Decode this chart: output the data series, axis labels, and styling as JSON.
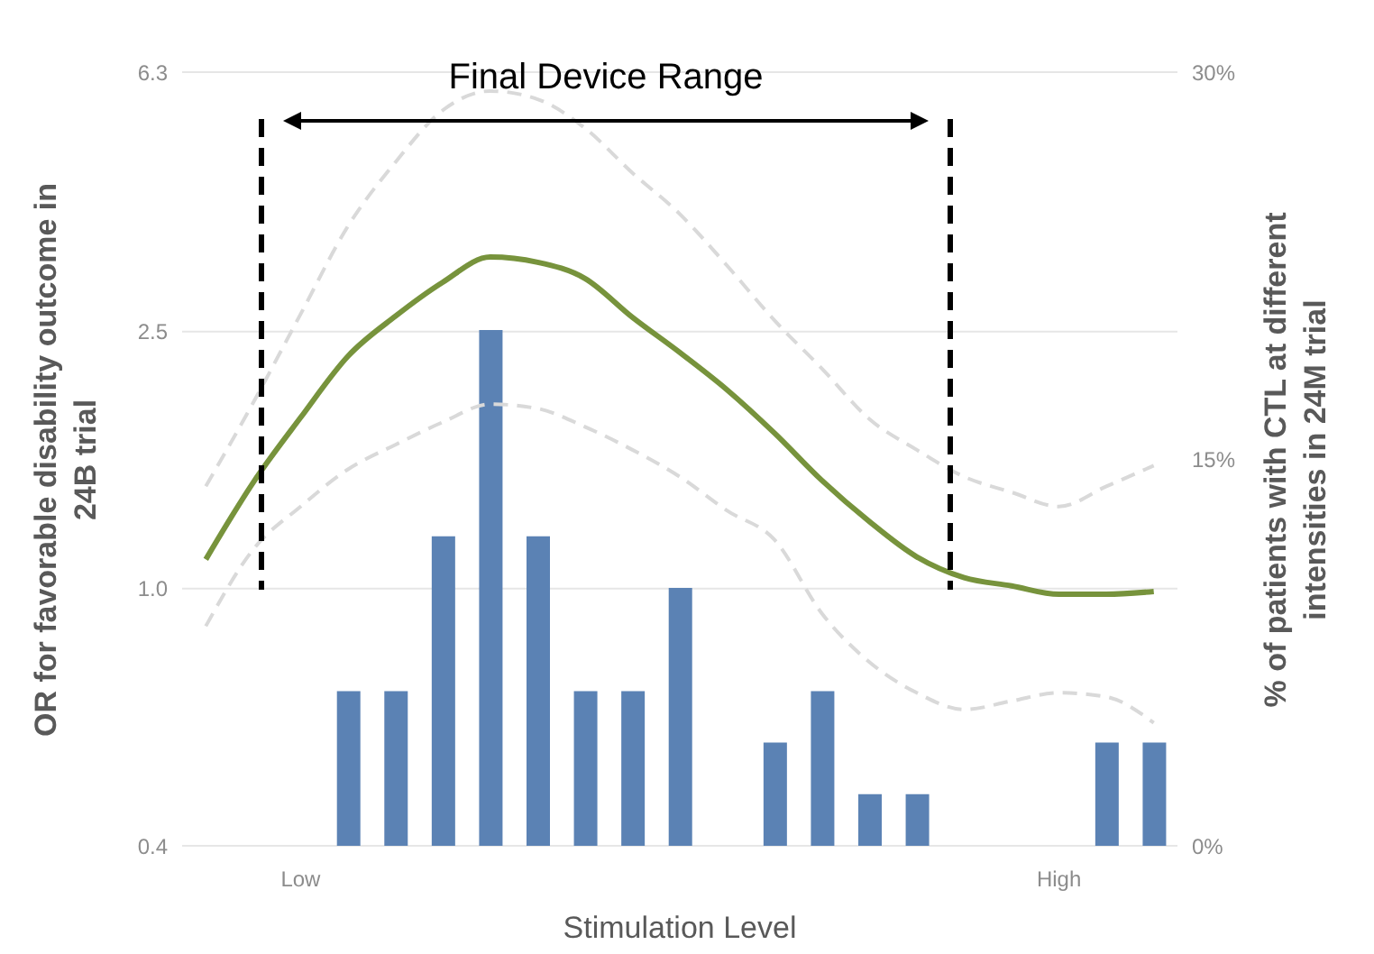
{
  "chart_data": {
    "type": "bar",
    "xlabel": "Stimulation Level",
    "ylabel": "OR for favorable disability outcome in 24B trial",
    "y2label": "% of patients with CTL at different intensities in 24M trial",
    "annotations": [
      "Final Device Range"
    ],
    "categories": [
      null,
      null,
      "Low",
      null,
      null,
      null,
      null,
      null,
      null,
      null,
      null,
      null,
      null,
      null,
      null,
      null,
      null,
      null,
      "High",
      null,
      null
    ],
    "log": "y",
    "ylim": [
      0.4,
      6.3
    ],
    "yticks": [
      0.4,
      {
        "value": 1,
        "label": "1.0"
      },
      2.5,
      6.3
    ],
    "y2lim": [
      0,
      30
    ],
    "y2ticks": [
      {
        "value": 0,
        "label": "0%"
      },
      {
        "value": 15,
        "label": "15%"
      },
      {
        "value": 30,
        "label": "30%"
      }
    ],
    "grid": "y",
    "series": [
      {
        "type": "line",
        "color": "#d9d9d9",
        "line_style": "dashed",
        "values": [
          1.44,
          1.94,
          2.66,
          3.64,
          4.57,
          5.5,
          5.89,
          5.72,
          5.16,
          4.4,
          3.8,
          3.16,
          2.6,
          2.19,
          1.83,
          1.64,
          1.49,
          1.41,
          1.34,
          1.44,
          1.55
        ]
      },
      {
        "type": "line",
        "color": "#d9d9d9",
        "line_style": "dashed",
        "values": [
          0.875,
          1.15,
          1.34,
          1.53,
          1.67,
          1.81,
          1.93,
          1.9,
          1.78,
          1.64,
          1.49,
          1.32,
          1.19,
          0.915,
          0.77,
          0.69,
          0.65,
          0.67,
          0.69,
          0.68,
          0.62
        ]
      },
      {
        "axis": "y2",
        "color": "#5b82b4",
        "values": [
          null,
          null,
          null,
          6,
          6,
          12,
          20,
          12,
          6,
          6,
          10,
          null,
          4,
          6,
          2,
          2,
          null,
          null,
          null,
          4,
          4
        ]
      },
      {
        "type": "line",
        "color": "#77933c",
        "line_style": "solid",
        "values": [
          1.11,
          1.46,
          1.84,
          2.29,
          2.64,
          2.98,
          3.26,
          3.2,
          3.02,
          2.63,
          2.32,
          2.03,
          1.74,
          1.47,
          1.27,
          1.12,
          1.04,
          1.01,
          0.98,
          0.98,
          0.99
        ]
      }
    ]
  }
}
